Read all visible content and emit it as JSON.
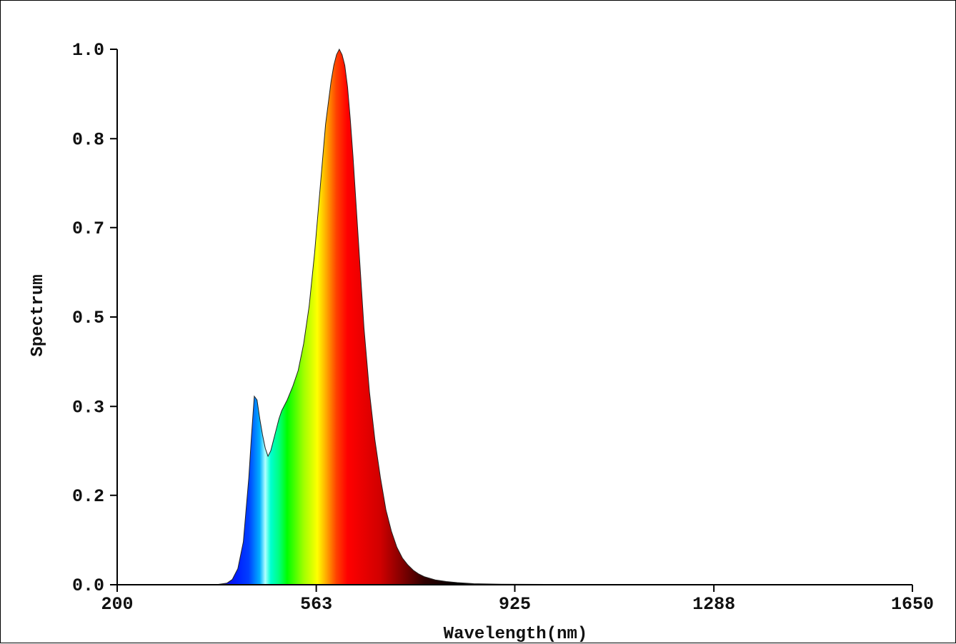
{
  "chart_data": {
    "type": "area",
    "xlabel": "Wavelength(nm)",
    "ylabel": "Spectrum",
    "xlim": [
      200,
      1650
    ],
    "ylim": [
      0,
      1.0
    ],
    "x_ticks": [
      200,
      563,
      925,
      1288,
      1650
    ],
    "x_tick_labels": [
      "200",
      "563",
      "925",
      "1288",
      "1650"
    ],
    "y_ticks": [
      0.0,
      0.167,
      0.333,
      0.5,
      0.667,
      0.833,
      1.0
    ],
    "y_tick_labels": [
      "0.0",
      "0.2",
      "0.3",
      "0.5",
      "0.7",
      "0.8",
      "1.0"
    ],
    "grid": false,
    "fill": "visible-spectrum gradient",
    "series": [
      {
        "x": [
          200,
          380,
          400,
          410,
          420,
          430,
          440,
          445,
          450,
          455,
          460,
          465,
          470,
          475,
          480,
          485,
          490,
          495,
          500,
          510,
          520,
          530,
          540,
          550,
          560,
          570,
          580,
          590,
          595,
          600,
          605,
          610,
          615,
          620,
          625,
          630,
          640,
          650,
          660,
          670,
          680,
          690,
          700,
          710,
          720,
          730,
          740,
          750,
          760,
          780,
          800,
          820,
          850,
          900,
          1000,
          1100,
          1200,
          1300,
          1400,
          1500,
          1650
        ],
        "y": [
          0.0,
          0.0,
          0.003,
          0.01,
          0.03,
          0.08,
          0.2,
          0.28,
          0.352,
          0.345,
          0.31,
          0.28,
          0.255,
          0.24,
          0.25,
          0.27,
          0.29,
          0.31,
          0.325,
          0.345,
          0.37,
          0.4,
          0.45,
          0.52,
          0.62,
          0.74,
          0.86,
          0.94,
          0.97,
          0.99,
          1.0,
          0.99,
          0.97,
          0.93,
          0.87,
          0.8,
          0.64,
          0.48,
          0.36,
          0.27,
          0.2,
          0.14,
          0.1,
          0.07,
          0.05,
          0.037,
          0.027,
          0.02,
          0.015,
          0.009,
          0.006,
          0.004,
          0.002,
          0.001,
          0.0005,
          0.0,
          0.0,
          0.0,
          0.0,
          0.0,
          0.0
        ]
      }
    ]
  }
}
